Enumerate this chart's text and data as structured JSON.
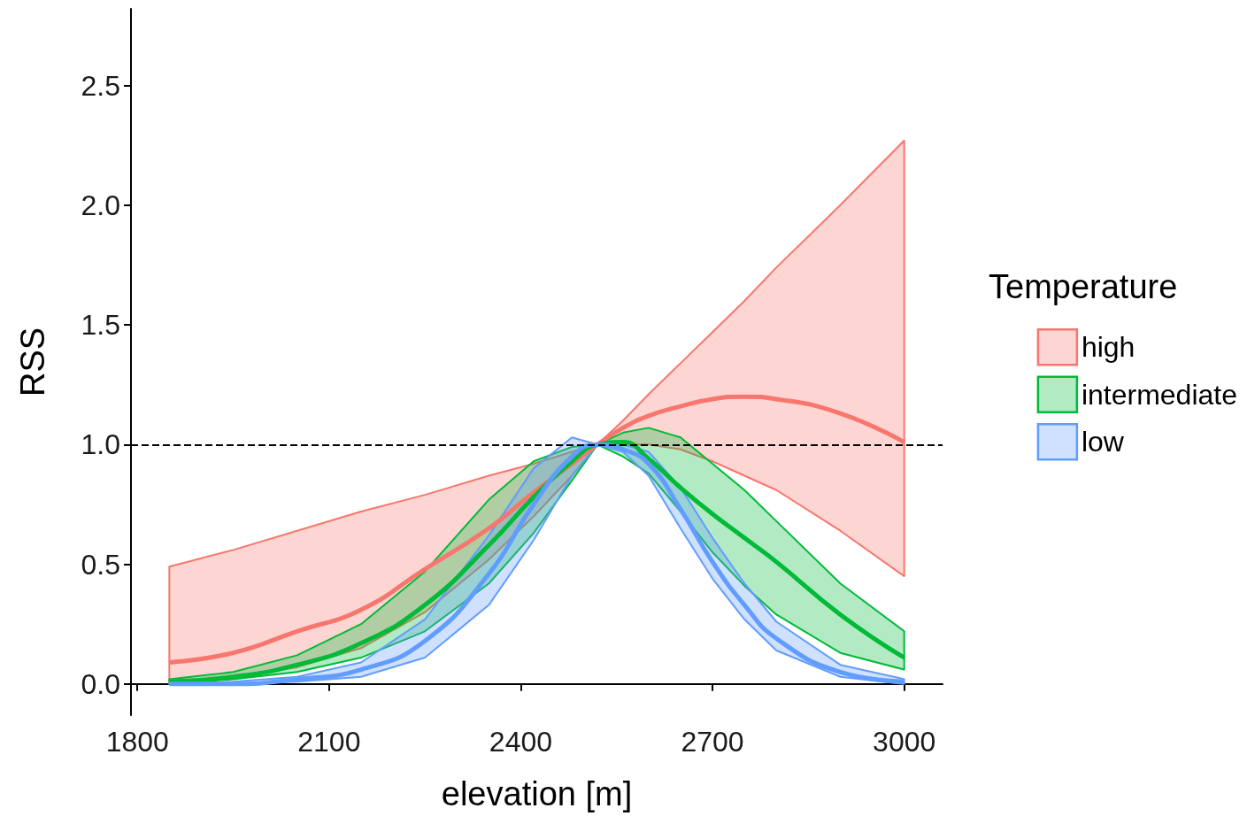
{
  "chart_data": {
    "type": "line",
    "xlabel": "elevation [m]",
    "ylabel": "RSS",
    "legend_title": "Temperature",
    "legend": "right",
    "x": [
      1850,
      1950,
      2050,
      2150,
      2250,
      2350,
      2420,
      2480,
      2520,
      2560,
      2600,
      2650,
      2700,
      2750,
      2800,
      2900,
      3000
    ],
    "series": [
      {
        "name": "high",
        "color": "#f8766d",
        "values": [
          0.09,
          0.13,
          0.22,
          0.31,
          0.48,
          0.65,
          0.8,
          0.92,
          1.0,
          1.07,
          1.12,
          1.16,
          1.19,
          1.2,
          1.19,
          1.13,
          1.01
        ],
        "lower": [
          0.01,
          0.03,
          0.07,
          0.15,
          0.3,
          0.52,
          0.7,
          0.87,
          1.0,
          1.0,
          1.0,
          0.98,
          0.93,
          0.87,
          0.81,
          0.64,
          0.45
        ],
        "upper": [
          0.49,
          0.56,
          0.64,
          0.72,
          0.79,
          0.87,
          0.92,
          0.97,
          1.0,
          1.1,
          1.21,
          1.34,
          1.47,
          1.6,
          1.74,
          2.0,
          2.27
        ]
      },
      {
        "name": "intermediate",
        "color": "#00ba38",
        "values": [
          0.01,
          0.03,
          0.08,
          0.17,
          0.33,
          0.58,
          0.78,
          0.93,
          1.0,
          1.01,
          0.94,
          0.82,
          0.71,
          0.61,
          0.51,
          0.29,
          0.11
        ],
        "lower": [
          0.0,
          0.02,
          0.05,
          0.11,
          0.22,
          0.42,
          0.63,
          0.85,
          1.0,
          0.95,
          0.88,
          0.72,
          0.55,
          0.41,
          0.29,
          0.13,
          0.06
        ],
        "upper": [
          0.02,
          0.05,
          0.12,
          0.25,
          0.47,
          0.77,
          0.93,
          0.99,
          1.0,
          1.05,
          1.07,
          1.03,
          0.92,
          0.81,
          0.68,
          0.42,
          0.22
        ]
      },
      {
        "name": "low",
        "color": "#619cff",
        "values": [
          0.0,
          0.0,
          0.02,
          0.06,
          0.18,
          0.46,
          0.75,
          0.95,
          1.0,
          0.98,
          0.92,
          0.73,
          0.51,
          0.33,
          0.19,
          0.05,
          0.01
        ],
        "lower": [
          0.0,
          0.0,
          0.01,
          0.03,
          0.11,
          0.33,
          0.6,
          0.87,
          1.0,
          0.97,
          0.87,
          0.65,
          0.44,
          0.27,
          0.14,
          0.03,
          0.0
        ],
        "upper": [
          0.0,
          0.01,
          0.03,
          0.09,
          0.27,
          0.62,
          0.9,
          1.03,
          1.0,
          1.0,
          0.97,
          0.82,
          0.61,
          0.42,
          0.26,
          0.08,
          0.02
        ]
      }
    ],
    "xlim": [
      1790,
      3060
    ],
    "xticks": [
      1800,
      2100,
      2400,
      2700,
      3000
    ],
    "ylim": [
      -0.13,
      2.82
    ],
    "yticks": [
      {
        "value": 0,
        "label": "0.0"
      },
      {
        "value": 0.5,
        "label": "0.5"
      },
      {
        "value": 1,
        "label": "1.0"
      },
      {
        "value": 1.5,
        "label": "1.5"
      },
      {
        "value": 2,
        "label": "2.0"
      },
      {
        "value": 2.5,
        "label": "2.5"
      }
    ],
    "ref_lines": [
      {
        "axis": "y",
        "value": 1,
        "label": null,
        "color": "#000000",
        "line_style": "dashed"
      }
    ],
    "grid": false,
    "marker": "none",
    "line_style": "solid"
  }
}
